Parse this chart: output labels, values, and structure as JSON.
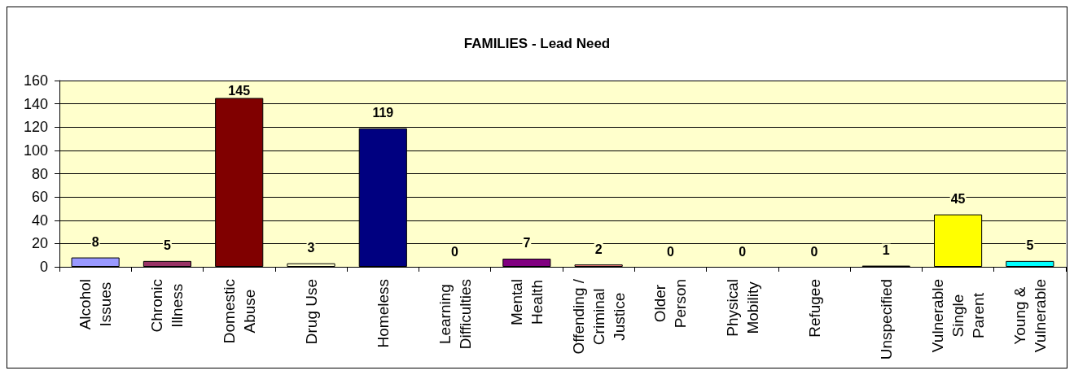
{
  "chart_data": {
    "type": "bar",
    "title": "FAMILIES - Lead Need",
    "categories": [
      "Alcohol Issues",
      "Chronic Illness",
      "Domestic Abuse",
      "Drug Use",
      "Homeless",
      "Learning Difficulties",
      "Mental Health",
      "Offending / Criminal Justice",
      "Older Person",
      "Physical Mobility",
      "Refugee",
      "Unspecified",
      "Vulnerable Single Parent",
      "Young & Vulnerable"
    ],
    "values": [
      8,
      5,
      145,
      3,
      119,
      0,
      7,
      2,
      0,
      0,
      0,
      1,
      45,
      5
    ],
    "colors": [
      "#9999ff",
      "#993366",
      "#800000",
      "#ffffcc",
      "#000080",
      null,
      "#800080",
      "#ff8080",
      null,
      null,
      null,
      "#333333",
      "#ffff00",
      "#00ffff"
    ],
    "ylim": [
      0,
      160
    ],
    "yticks": [
      0,
      20,
      40,
      60,
      80,
      100,
      120,
      140,
      160
    ],
    "grid": "y",
    "data_labels": true
  }
}
